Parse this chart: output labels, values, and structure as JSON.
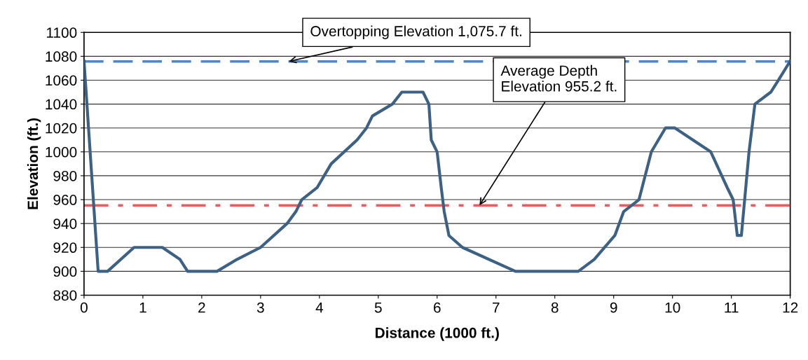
{
  "chart_data": {
    "type": "line",
    "xlabel": "Distance (1000 ft.)",
    "ylabel": "Elevation (ft.)",
    "xlim": [
      0,
      12
    ],
    "xticks": [
      0,
      1,
      2,
      3,
      4,
      5,
      6,
      7,
      8,
      9,
      10,
      11,
      12
    ],
    "ylim": [
      880,
      1100
    ],
    "yticks": [
      880,
      900,
      920,
      940,
      960,
      980,
      1000,
      1020,
      1040,
      1060,
      1080,
      1100
    ],
    "grid": "y",
    "legend": false,
    "marker": "none",
    "line_style": "solid",
    "series": [
      {
        "color": "#3d6185",
        "x": [
          0,
          0.24,
          0.4,
          0.85,
          1.33,
          1.63,
          1.76,
          2.26,
          2.6,
          3.0,
          3.45,
          3.6,
          3.7,
          3.96,
          4.2,
          4.64,
          4.8,
          4.9,
          5.24,
          5.4,
          5.76,
          5.86,
          5.9,
          6.0,
          6.07,
          6.12,
          6.2,
          6.43,
          7.33,
          8.4,
          8.67,
          9.02,
          9.17,
          9.43,
          9.64,
          9.76,
          9.88,
          10.04,
          10.65,
          10.93,
          11.03,
          11.1,
          11.17,
          11.3,
          11.4,
          11.67,
          11.8,
          12
        ],
        "values": [
          1076,
          900,
          900,
          920,
          920,
          910,
          900,
          900,
          910,
          920,
          940,
          950,
          960,
          970,
          990,
          1010,
          1020,
          1030,
          1040,
          1050,
          1050,
          1040,
          1010,
          1000,
          970,
          950,
          930,
          920,
          900,
          900,
          910,
          930,
          950,
          960,
          1000,
          1010,
          1020,
          1020,
          1000,
          970,
          960,
          930,
          930,
          1000,
          1040,
          1050,
          1060,
          1076
        ]
      }
    ],
    "ref_lines": [
      {
        "axis": "y",
        "value": 1075.7,
        "label": "Overtopping Elevation 1,075.7 ft.",
        "color": "#4f86c6",
        "line_style": "dashed"
      },
      {
        "axis": "y",
        "value": 955.2,
        "label": "Average Depth\nElevation 955.2 ft.",
        "color": "#f05a5a",
        "line_style": "dashdot"
      }
    ]
  }
}
